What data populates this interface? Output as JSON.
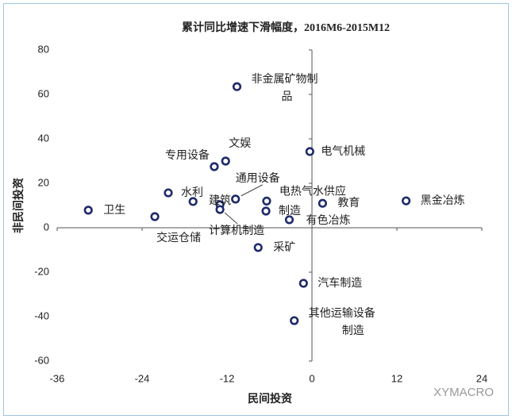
{
  "chart_data": {
    "type": "scatter",
    "title": "累计同比增速下滑幅度，2016M6-2015M12",
    "x_label": "民间投资",
    "y_label": "非民间投资",
    "watermark": "XYMACRO",
    "xlim": [
      -36,
      24
    ],
    "xticks": [
      -36,
      -24,
      -12,
      0,
      12,
      24
    ],
    "ylim": [
      -60,
      80
    ],
    "yticks": [
      -60,
      -40,
      -20,
      0,
      20,
      40,
      60,
      80
    ],
    "color": "#1f2a6b",
    "x": [
      -31.6,
      -22.2,
      -20.3,
      -16.8,
      -13.0,
      -13.0,
      -10.8,
      -13.8,
      -12.2,
      -10.6,
      -7.6,
      -6.4,
      -6.5,
      -3.2,
      -0.3,
      1.5,
      13.3,
      -1.2,
      -2.5
    ],
    "values": [
      7.9,
      5,
      15.7,
      11.8,
      10.4,
      8.2,
      12.9,
      27.5,
      30,
      63.5,
      -8.9,
      12,
      7.5,
      3.6,
      34.3,
      11,
      12.1,
      -25,
      -41.8
    ],
    "labels": [
      [
        "卫生"
      ],
      [
        "交运仓储"
      ],
      [
        "水利"
      ],
      null,
      [
        "建筑"
      ],
      [
        "计算机制造"
      ],
      [
        "通用设备"
      ],
      [
        "专用设备"
      ],
      [
        "文娱"
      ],
      [
        "非金属矿物制",
        "品"
      ],
      [
        "采矿"
      ],
      [
        "电热气水供应"
      ],
      [
        "制造"
      ],
      [
        "有色冶炼"
      ],
      [
        "电气机械"
      ],
      [
        "教育"
      ],
      [
        "黑金冶炼"
      ],
      [
        "汽车制造"
      ],
      [
        "其他运输设备",
        "制造"
      ]
    ]
  }
}
